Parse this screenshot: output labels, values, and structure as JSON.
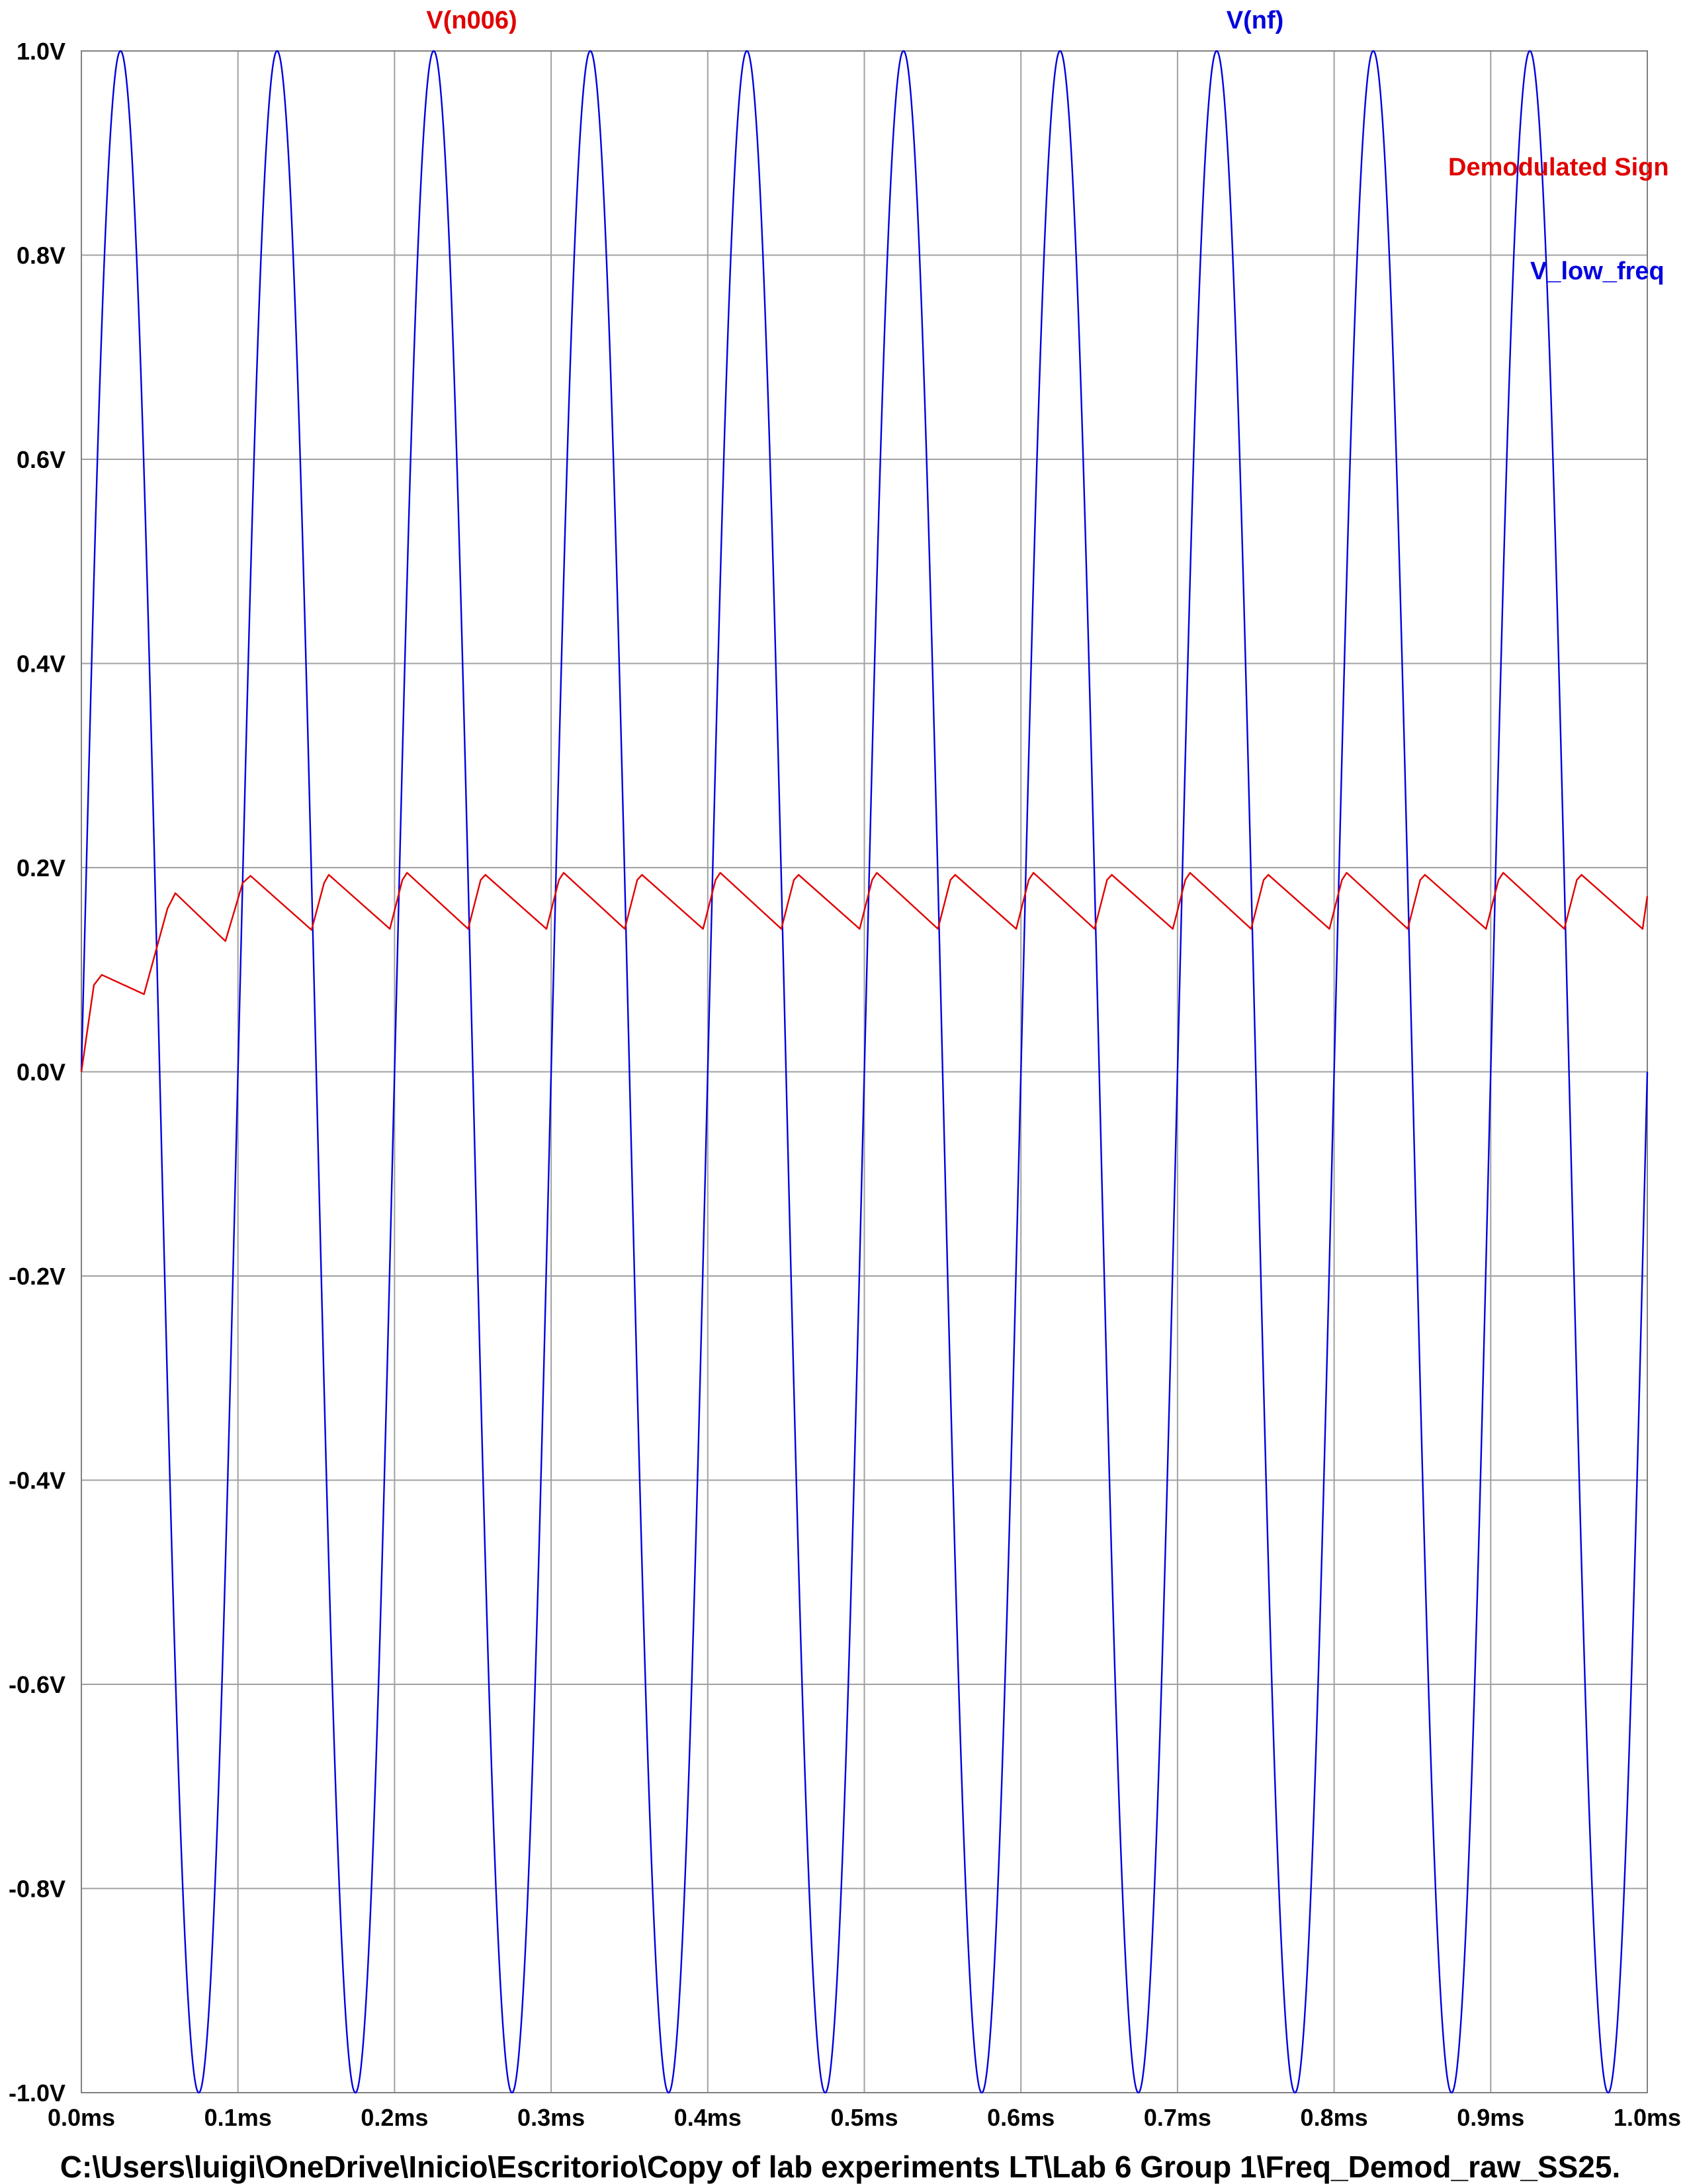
{
  "chart_data": {
    "type": "line",
    "title": "",
    "xlabel": "",
    "ylabel": "",
    "xlim": [
      0,
      1.0
    ],
    "ylim": [
      -1.0,
      1.0
    ],
    "grid": true,
    "x_ticks": [
      0.0,
      0.1,
      0.2,
      0.3,
      0.4,
      0.5,
      0.6,
      0.7,
      0.8,
      0.9,
      1.0
    ],
    "x_tick_labels": [
      "0.0ms",
      "0.1ms",
      "0.2ms",
      "0.3ms",
      "0.4ms",
      "0.5ms",
      "0.6ms",
      "0.7ms",
      "0.8ms",
      "0.9ms",
      "1.0ms"
    ],
    "y_ticks": [
      1.0,
      0.8,
      0.6,
      0.4,
      0.2,
      0.0,
      -0.2,
      -0.4,
      -0.6,
      -0.8,
      -1.0
    ],
    "y_tick_labels": [
      "1.0V",
      "0.8V",
      "0.6V",
      "0.4V",
      "0.2V",
      "0.0V",
      "-0.2V",
      "-0.4V",
      "-0.6V",
      "-0.8V",
      "-1.0V"
    ],
    "series": [
      {
        "name": "V(n006)",
        "color": "#e00000",
        "x": [
          0.0,
          0.008,
          0.013,
          0.04,
          0.055,
          0.06,
          0.092,
          0.103,
          0.108,
          0.147,
          0.155,
          0.158,
          0.197,
          0.205,
          0.208,
          0.247,
          0.255,
          0.258,
          0.297,
          0.305,
          0.308,
          0.347,
          0.355,
          0.358,
          0.397,
          0.405,
          0.408,
          0.447,
          0.455,
          0.458,
          0.497,
          0.505,
          0.508,
          0.547,
          0.555,
          0.558,
          0.597,
          0.605,
          0.608,
          0.647,
          0.655,
          0.658,
          0.697,
          0.705,
          0.708,
          0.747,
          0.755,
          0.758,
          0.797,
          0.805,
          0.808,
          0.847,
          0.855,
          0.858,
          0.897,
          0.905,
          0.908,
          0.947,
          0.955,
          0.958,
          0.997,
          1.0
        ],
        "y": [
          0.0,
          0.085,
          0.095,
          0.076,
          0.16,
          0.175,
          0.128,
          0.185,
          0.192,
          0.139,
          0.185,
          0.193,
          0.14,
          0.188,
          0.195,
          0.14,
          0.188,
          0.193,
          0.14,
          0.188,
          0.195,
          0.14,
          0.188,
          0.193,
          0.14,
          0.188,
          0.195,
          0.14,
          0.188,
          0.193,
          0.14,
          0.188,
          0.195,
          0.14,
          0.188,
          0.193,
          0.14,
          0.188,
          0.195,
          0.14,
          0.188,
          0.193,
          0.14,
          0.188,
          0.195,
          0.14,
          0.188,
          0.193,
          0.14,
          0.188,
          0.195,
          0.14,
          0.188,
          0.193,
          0.14,
          0.188,
          0.195,
          0.14,
          0.188,
          0.193,
          0.14,
          0.172
        ]
      },
      {
        "name": "V(nf)",
        "color": "#0000e0",
        "x": [
          0.0,
          0.025,
          0.05,
          0.075,
          0.1,
          0.125,
          0.15,
          0.175,
          0.2,
          0.225,
          0.25,
          0.275,
          0.3,
          0.325,
          0.35,
          0.375,
          0.4,
          0.425,
          0.45,
          0.475,
          0.5,
          0.525,
          0.55,
          0.575,
          0.6,
          0.625,
          0.65,
          0.675,
          0.7,
          0.725,
          0.75,
          0.775,
          0.8,
          0.825,
          0.85,
          0.875,
          0.9,
          0.925,
          0.95,
          0.975,
          1.0
        ],
        "y": [
          0.0,
          1.0,
          0.0,
          -1.0,
          0.0,
          1.0,
          0.0,
          -1.0,
          0.0,
          1.0,
          0.0,
          -1.0,
          0.0,
          1.0,
          0.0,
          -1.0,
          0.0,
          1.0,
          0.0,
          -1.0,
          0.0,
          1.0,
          0.0,
          -1.0,
          0.0,
          1.0,
          0.0,
          -1.0,
          0.0,
          1.0,
          0.0,
          -1.0,
          0.0,
          1.0,
          0.0,
          -1.0,
          0.0,
          1.0,
          0.0,
          -1.0,
          0.0
        ]
      }
    ],
    "annotations": [
      {
        "text": "Demodulated Sign",
        "color": "#e00000"
      },
      {
        "text": "V_low_freq",
        "color": "#0000e0"
      }
    ],
    "file_path": "C:\\Users\\luigi\\OneDrive\\Inicio\\Escritorio\\Copy of lab experiments LT\\Lab 6 Group 1\\Freq_Demod_raw_SS25."
  }
}
